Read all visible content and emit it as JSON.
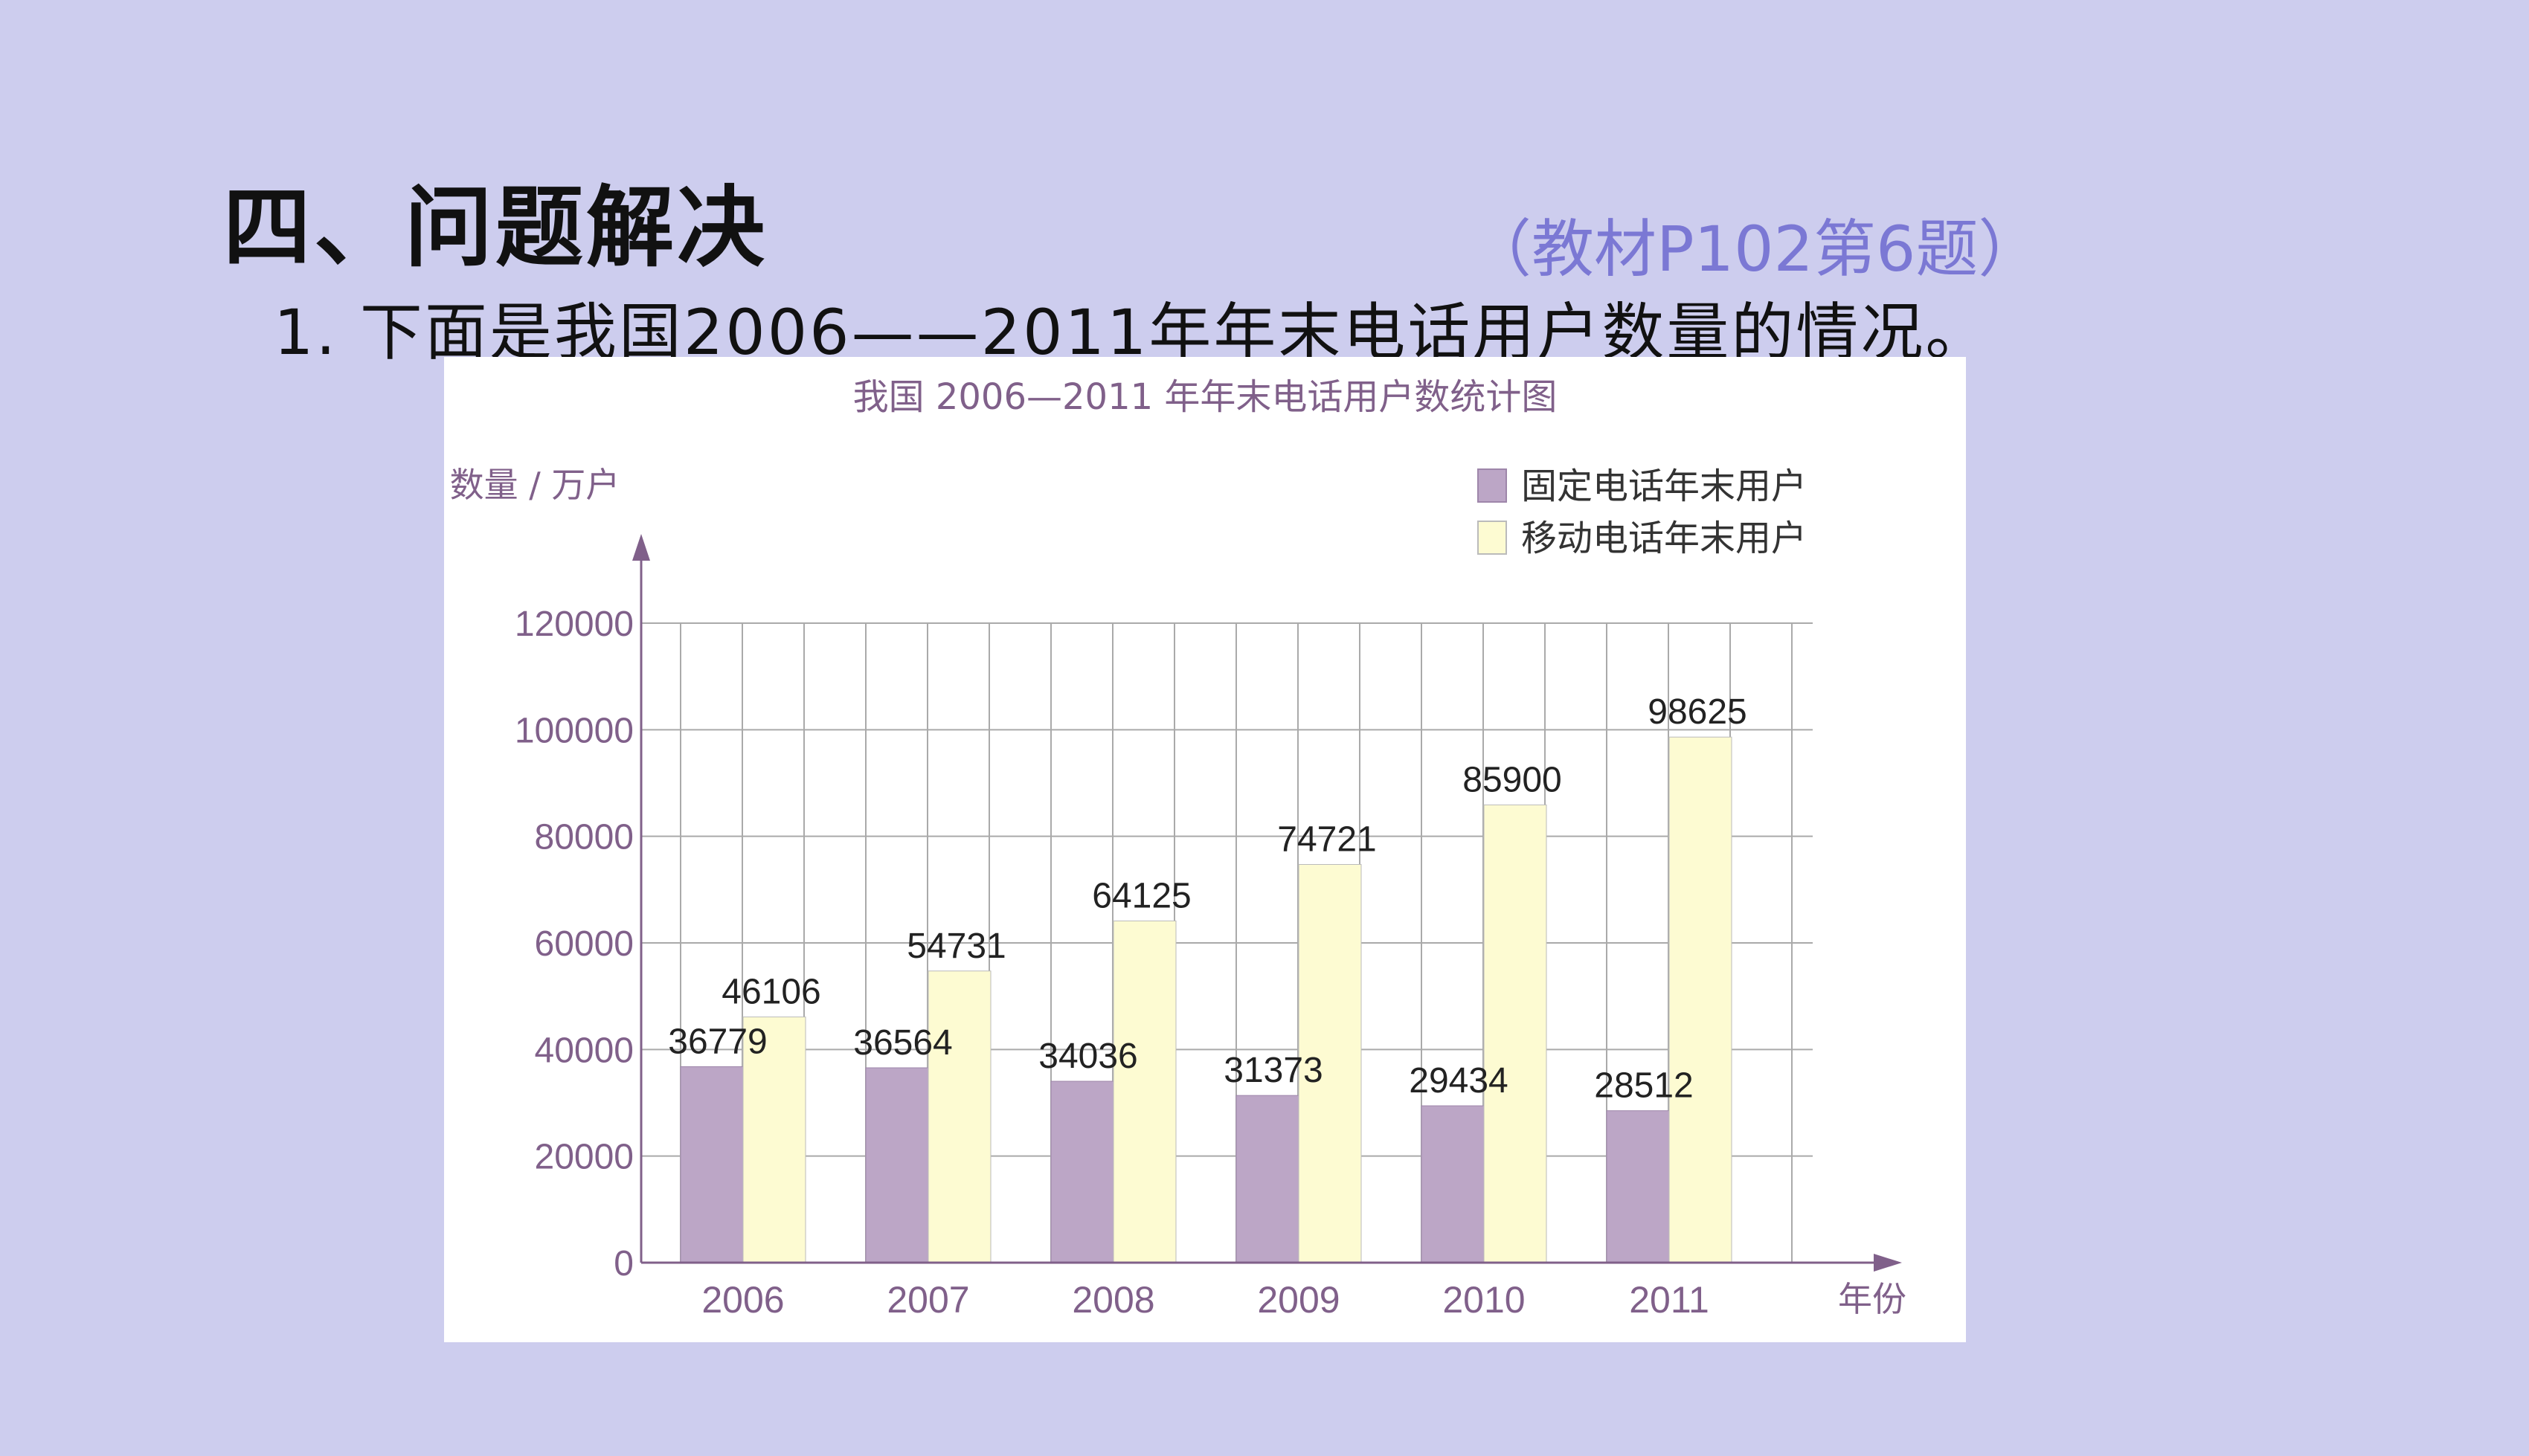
{
  "slide": {
    "section_title": "四、问题解决",
    "source_note": "（教材P102第6题）",
    "question": "1. 下面是我国2006——2011年年末电话用户数量的情况。"
  },
  "chart_data": {
    "type": "bar",
    "title": "我国 2006—2011 年年末电话用户数统计图",
    "xlabel": "年份",
    "ylabel": "数量 / 万户",
    "categories": [
      "2006",
      "2007",
      "2008",
      "2009",
      "2010",
      "2011"
    ],
    "series": [
      {
        "name": "固定电话年末用户",
        "color": "#bca6c6",
        "values": [
          36779,
          36564,
          34036,
          31373,
          29434,
          28512
        ]
      },
      {
        "name": "移动电话年末用户",
        "color": "#fdfbd2",
        "values": [
          46106,
          54731,
          64125,
          74721,
          85900,
          98625
        ]
      }
    ],
    "ylim": [
      0,
      120000
    ],
    "yticks": [
      "0",
      "20000",
      "40000",
      "60000",
      "80000",
      "100000",
      "120000"
    ],
    "grid": true,
    "legend": "top-right",
    "colors": {
      "axis": "#80608a",
      "text_purple": "#80608a",
      "grid": "#aaaaaa"
    }
  }
}
